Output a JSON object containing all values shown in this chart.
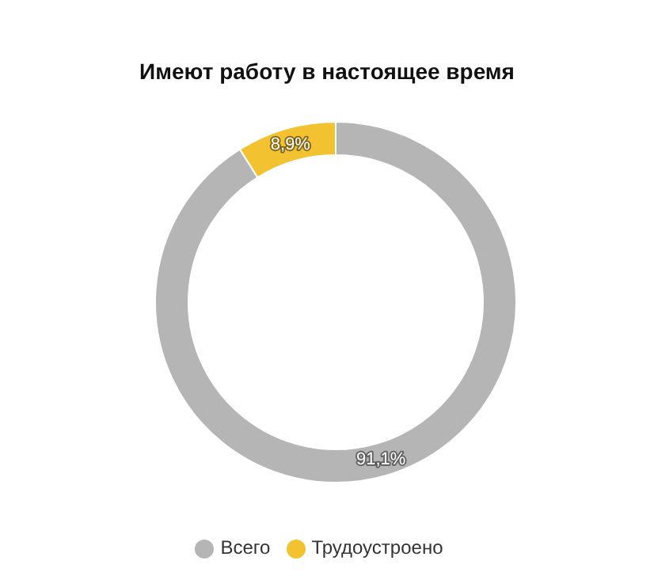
{
  "chart_data": {
    "type": "donut",
    "title": "Имеют работу в настоящее время",
    "categories": [
      "Всего",
      "Трудоустроено"
    ],
    "values": [
      91.1,
      8.9
    ],
    "value_labels": [
      "91,1%",
      "8,9%"
    ],
    "colors": [
      "#b5b5b5",
      "#f2c230"
    ],
    "legend": "bottom"
  }
}
